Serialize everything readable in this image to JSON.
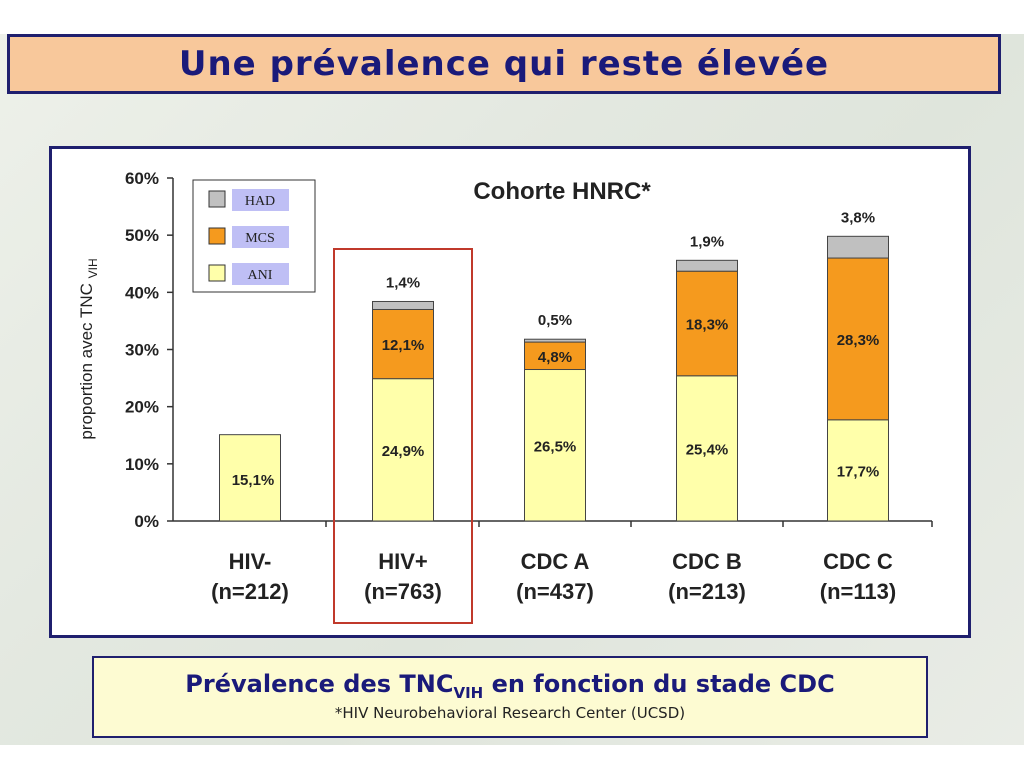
{
  "title": "Une prévalence qui reste élevée",
  "caption": {
    "main_prefix": "Prévalence des TNC",
    "main_sub": "VIH",
    "main_suffix": " en fonction du stade CDC",
    "note": "*HIV Neurobehavioral Research Center (UCSD)"
  },
  "colors": {
    "ANI": "#ffffaa",
    "MCS": "#f59a1e",
    "HAD": "#c0c0c0",
    "legend_label_bg": "#bfbff5",
    "highlight": "#c0392b"
  },
  "chart_data": {
    "type": "bar",
    "stacked": true,
    "title": "Cohorte HNRC*",
    "ylabel_main": "proportion avec TNC",
    "ylabel_sub": "VIH",
    "ylim": [
      0,
      60
    ],
    "yticks": [
      "0%",
      "10%",
      "20%",
      "30%",
      "40%",
      "50%",
      "60%"
    ],
    "categories": [
      {
        "name": "HIV-",
        "n": "(n=212)"
      },
      {
        "name": "HIV+",
        "n": "(n=763)"
      },
      {
        "name": "CDC A",
        "n": "(n=437)"
      },
      {
        "name": "CDC B",
        "n": "(n=213)"
      },
      {
        "name": "CDC C",
        "n": "(n=113)"
      }
    ],
    "series": [
      {
        "name": "ANI",
        "values": [
          15.1,
          24.9,
          26.5,
          25.4,
          17.7
        ],
        "labels": [
          "15,1%",
          "24,9%",
          "26,5%",
          "25,4%",
          "17,7%"
        ]
      },
      {
        "name": "MCS",
        "values": [
          0,
          12.1,
          4.8,
          18.3,
          28.3
        ],
        "labels": [
          "",
          "12,1%",
          "4,8%",
          "18,3%",
          "28,3%"
        ]
      },
      {
        "name": "HAD",
        "values": [
          0,
          1.4,
          0.5,
          1.9,
          3.8
        ],
        "labels": [
          "",
          "1,4%",
          "0,5%",
          "1,9%",
          "3,8%"
        ]
      }
    ],
    "legend": [
      "HAD",
      "MCS",
      "ANI"
    ],
    "legend_position": "top-left",
    "highlighted_category": "HIV+",
    "grid": false
  }
}
